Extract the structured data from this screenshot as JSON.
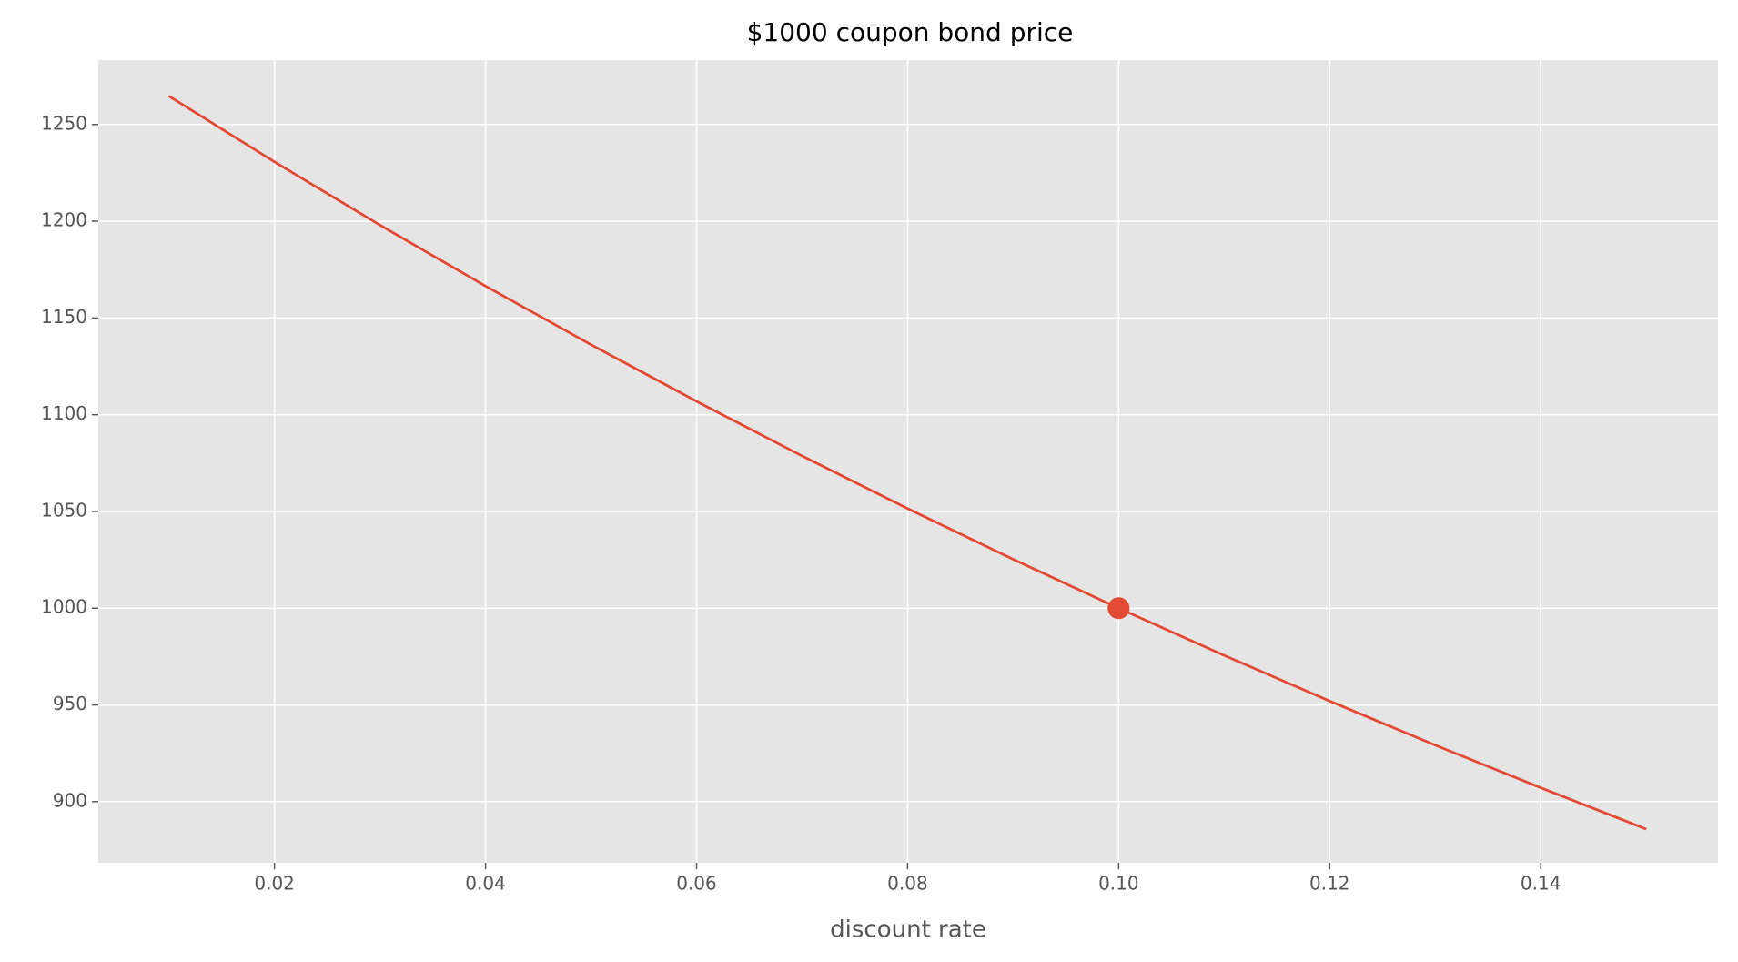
{
  "chart_data": {
    "type": "line",
    "title": "$1000 coupon bond price",
    "x_label": "discount rate",
    "x": [
      0.01,
      0.02,
      0.03,
      0.04,
      0.05,
      0.06,
      0.07,
      0.08,
      0.09,
      0.1,
      0.11,
      0.12,
      0.13,
      0.14,
      0.15
    ],
    "series": [
      {
        "color": "#e24a33",
        "values": [
          1264.7,
          1230.7,
          1198.0,
          1166.5,
          1136.2,
          1106.9,
          1078.7,
          1051.5,
          1025.3,
          1000.0,
          975.6,
          952.0,
          929.2,
          907.2,
          885.8
        ]
      }
    ],
    "point": {
      "x": 0.1,
      "y": 1000,
      "color": "#e24a33"
    },
    "xlim": [
      0.0033,
      0.1568
    ],
    "ylim": [
      868.4,
      1283.3
    ],
    "xticks": [
      0.02,
      0.04,
      0.06,
      0.08,
      {
        "value": 0.1,
        "label": "0.10"
      },
      0.12,
      0.14
    ],
    "yticks": [
      900,
      950,
      1000,
      1050,
      1100,
      1150,
      1200,
      1250
    ],
    "grid": true
  }
}
